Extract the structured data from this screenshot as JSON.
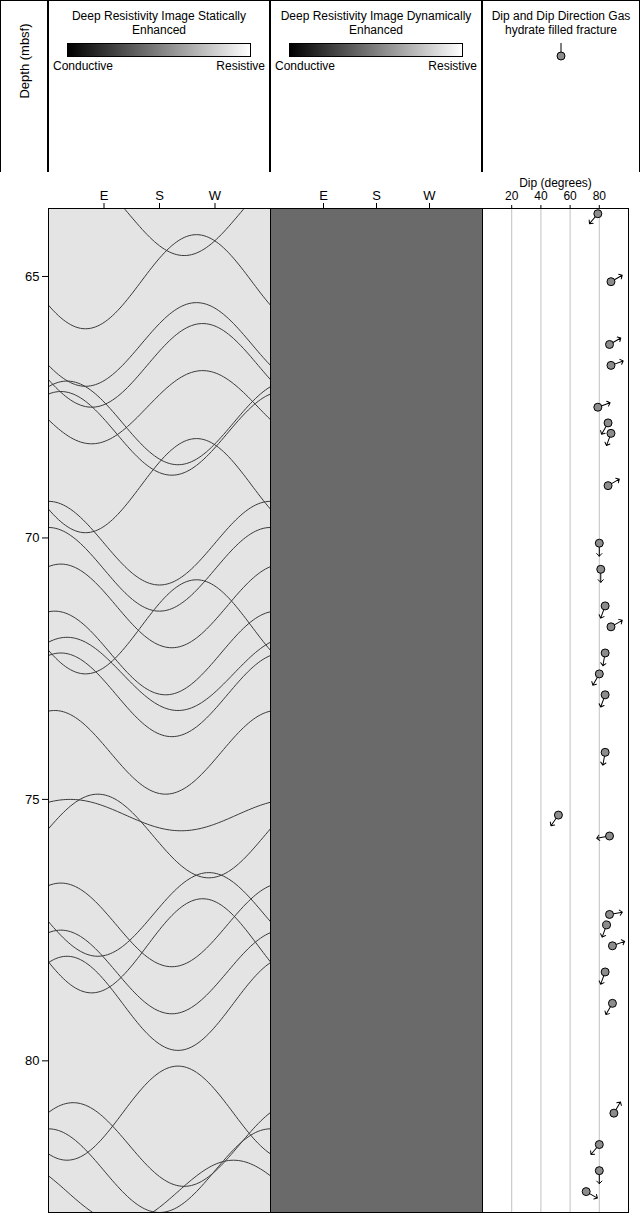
{
  "chart_data": {
    "type": "well_log",
    "ylabel": "Depth (mbsf)",
    "ylim": [
      63.7,
      82.9
    ],
    "yticks": [
      65,
      70,
      75,
      80
    ],
    "panels": [
      {
        "type": "image_traces",
        "title": "Deep Resistivity Image Statically Enhanced",
        "scale_labels": [
          "Conductive",
          "Resistive"
        ],
        "colors": [
          "#000000",
          "#ffffff"
        ],
        "color": "#e4e4e4",
        "xlim": [
          0,
          360
        ],
        "xticks": [
          {
            "value": 90,
            "label": "E"
          },
          {
            "value": 180,
            "label": "S"
          },
          {
            "value": 270,
            "label": "W"
          }
        ]
      },
      {
        "type": "image",
        "title": "Deep Resistivity Image Dynamically Enhanced",
        "scale_labels": [
          "Conductive",
          "Resistive"
        ],
        "colors": [
          "#000000",
          "#ffffff"
        ],
        "color": "#6a6a6a",
        "xlim": [
          0,
          360
        ],
        "xticks": [
          {
            "value": 90,
            "label": "E"
          },
          {
            "value": 180,
            "label": "S"
          },
          {
            "value": 270,
            "label": "W"
          }
        ]
      },
      {
        "type": "tadpole",
        "title": "Dip and Dip Direction Gas hydrate filled fracture",
        "xlabel": "Dip (degrees)",
        "xlim": [
          0,
          100
        ],
        "xticks": [
          20,
          40,
          60,
          80
        ],
        "grid": true,
        "color": "#8c8c8c"
      }
    ],
    "fractures": [
      {
        "depth": 63.8,
        "dip": 79,
        "azimuth": 220,
        "trace_amplitude": 0.8
      },
      {
        "depth": 65.1,
        "dip": 88,
        "azimuth": 60,
        "trace_amplitude": 0.9
      },
      {
        "depth": 66.3,
        "dip": 87,
        "azimuth": 60,
        "trace_amplitude": 0.8
      },
      {
        "depth": 66.7,
        "dip": 88,
        "azimuth": 70,
        "trace_amplitude": 0.8
      },
      {
        "depth": 67.5,
        "dip": 79,
        "azimuth": 70,
        "trace_amplitude": 0.7
      },
      {
        "depth": 67.8,
        "dip": 86,
        "azimuth": 210,
        "trace_amplitude": 0.8
      },
      {
        "depth": 68.0,
        "dip": 88,
        "azimuth": 200,
        "trace_amplitude": 0.8
      },
      {
        "depth": 69.0,
        "dip": 86,
        "azimuth": 60,
        "trace_amplitude": 0.9
      },
      {
        "depth": 70.1,
        "dip": 80,
        "azimuth": 180,
        "trace_amplitude": 0.8
      },
      {
        "depth": 70.6,
        "dip": 81,
        "azimuth": 180,
        "trace_amplitude": 0.8
      },
      {
        "depth": 71.3,
        "dip": 84,
        "azimuth": 200,
        "trace_amplitude": 0.8
      },
      {
        "depth": 71.7,
        "dip": 88,
        "azimuth": 60,
        "trace_amplitude": 0.9
      },
      {
        "depth": 72.2,
        "dip": 84,
        "azimuth": 190,
        "trace_amplitude": 0.8
      },
      {
        "depth": 72.6,
        "dip": 80,
        "azimuth": 210,
        "trace_amplitude": 0.7
      },
      {
        "depth": 73.0,
        "dip": 84,
        "azimuth": 200,
        "trace_amplitude": 0.8
      },
      {
        "depth": 74.1,
        "dip": 84,
        "azimuth": 190,
        "trace_amplitude": 0.8
      },
      {
        "depth": 75.3,
        "dip": 52,
        "azimuth": 215,
        "trace_amplitude": 0.3
      },
      {
        "depth": 75.7,
        "dip": 87,
        "azimuth": 260,
        "trace_amplitude": 0.8
      },
      {
        "depth": 77.2,
        "dip": 87,
        "azimuth": 80,
        "trace_amplitude": 0.8
      },
      {
        "depth": 77.4,
        "dip": 85,
        "azimuth": 200,
        "trace_amplitude": 0.8
      },
      {
        "depth": 77.8,
        "dip": 89,
        "azimuth": 70,
        "trace_amplitude": 0.9
      },
      {
        "depth": 78.3,
        "dip": 84,
        "azimuth": 200,
        "trace_amplitude": 0.8
      },
      {
        "depth": 78.9,
        "dip": 89,
        "azimuth": 210,
        "trace_amplitude": 0.9
      },
      {
        "depth": 81.0,
        "dip": 90,
        "azimuth": 30,
        "trace_amplitude": 0.9
      },
      {
        "depth": 81.6,
        "dip": 80,
        "azimuth": 220,
        "trace_amplitude": 0.8
      },
      {
        "depth": 82.1,
        "dip": 80,
        "azimuth": 180,
        "trace_amplitude": 0.8
      },
      {
        "depth": 82.5,
        "dip": 71,
        "azimuth": 120,
        "trace_amplitude": 0.6
      }
    ]
  }
}
